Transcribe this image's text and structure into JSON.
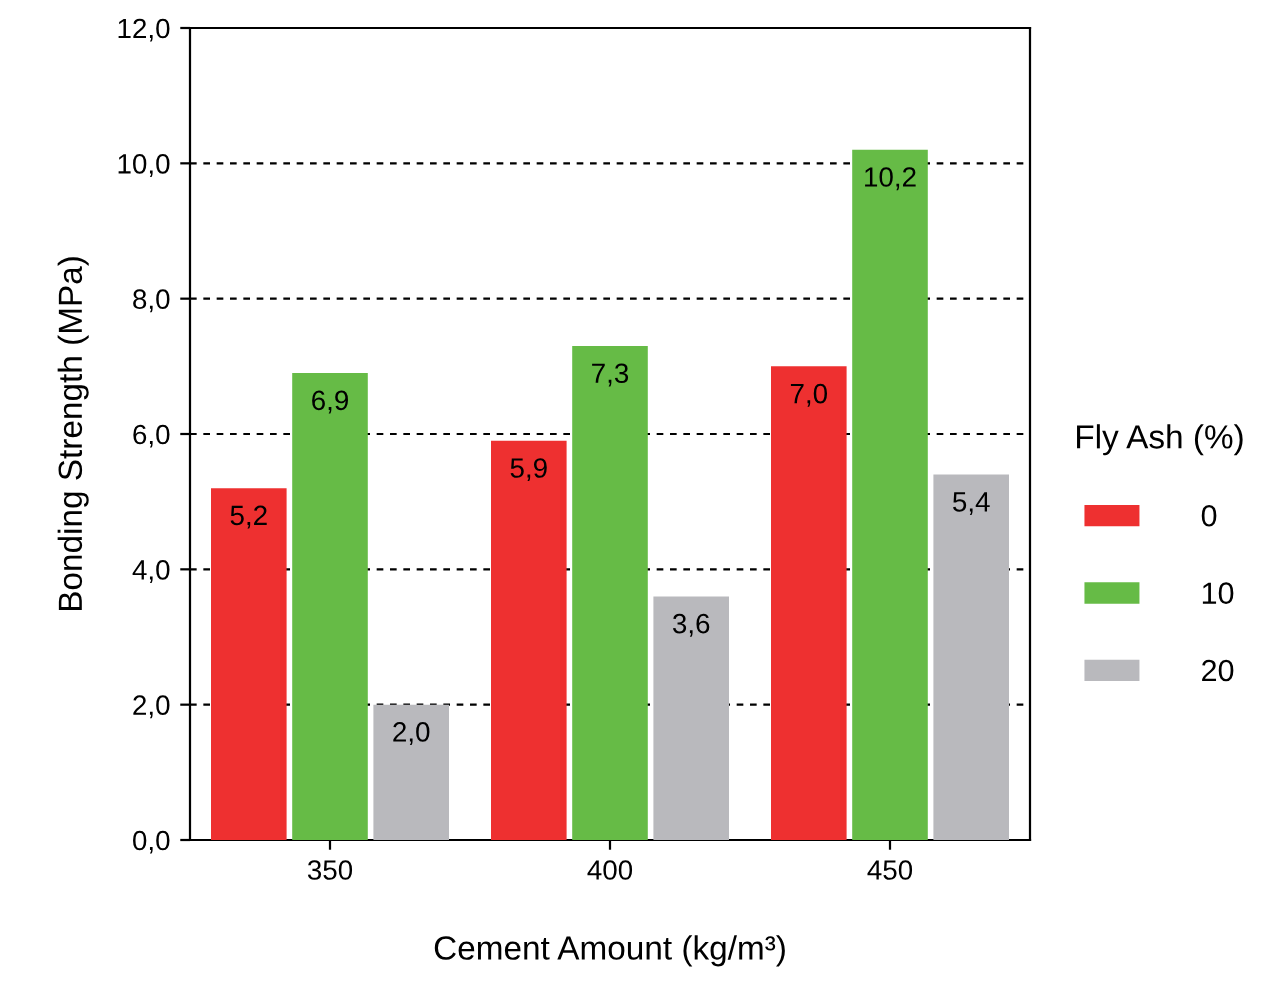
{
  "chart_data": {
    "type": "bar",
    "xlabel": "Cement Amount (kg/m³)",
    "ylabel": "Bonding Strength (MPa)",
    "legend_title": "Fly Ash (%)",
    "categories": [
      "350",
      "400",
      "450"
    ],
    "series": [
      {
        "name": "0",
        "color": "#ee3030",
        "values": [
          5.2,
          5.9,
          7.0
        ],
        "value_labels": [
          "5,2",
          "5,9",
          "7,0"
        ]
      },
      {
        "name": "10",
        "color": "#66bb46",
        "values": [
          6.9,
          7.3,
          10.2
        ],
        "value_labels": [
          "6,9",
          "7,3",
          "10,2"
        ]
      },
      {
        "name": "20",
        "color": "#b9b9bd",
        "values": [
          2.0,
          3.6,
          5.4
        ],
        "value_labels": [
          "2,0",
          "3,6",
          "5,4"
        ]
      }
    ],
    "ylim": [
      0,
      12
    ],
    "yticks": [
      {
        "value": 0,
        "label": "0,0"
      },
      {
        "value": 2,
        "label": "2,0"
      },
      {
        "value": 4,
        "label": "4,0"
      },
      {
        "value": 6,
        "label": "6,0"
      },
      {
        "value": 8,
        "label": "8,0"
      },
      {
        "value": 10,
        "label": "10,0"
      },
      {
        "value": 12,
        "label": "12,0"
      }
    ],
    "grid": "y",
    "legend": "right"
  }
}
